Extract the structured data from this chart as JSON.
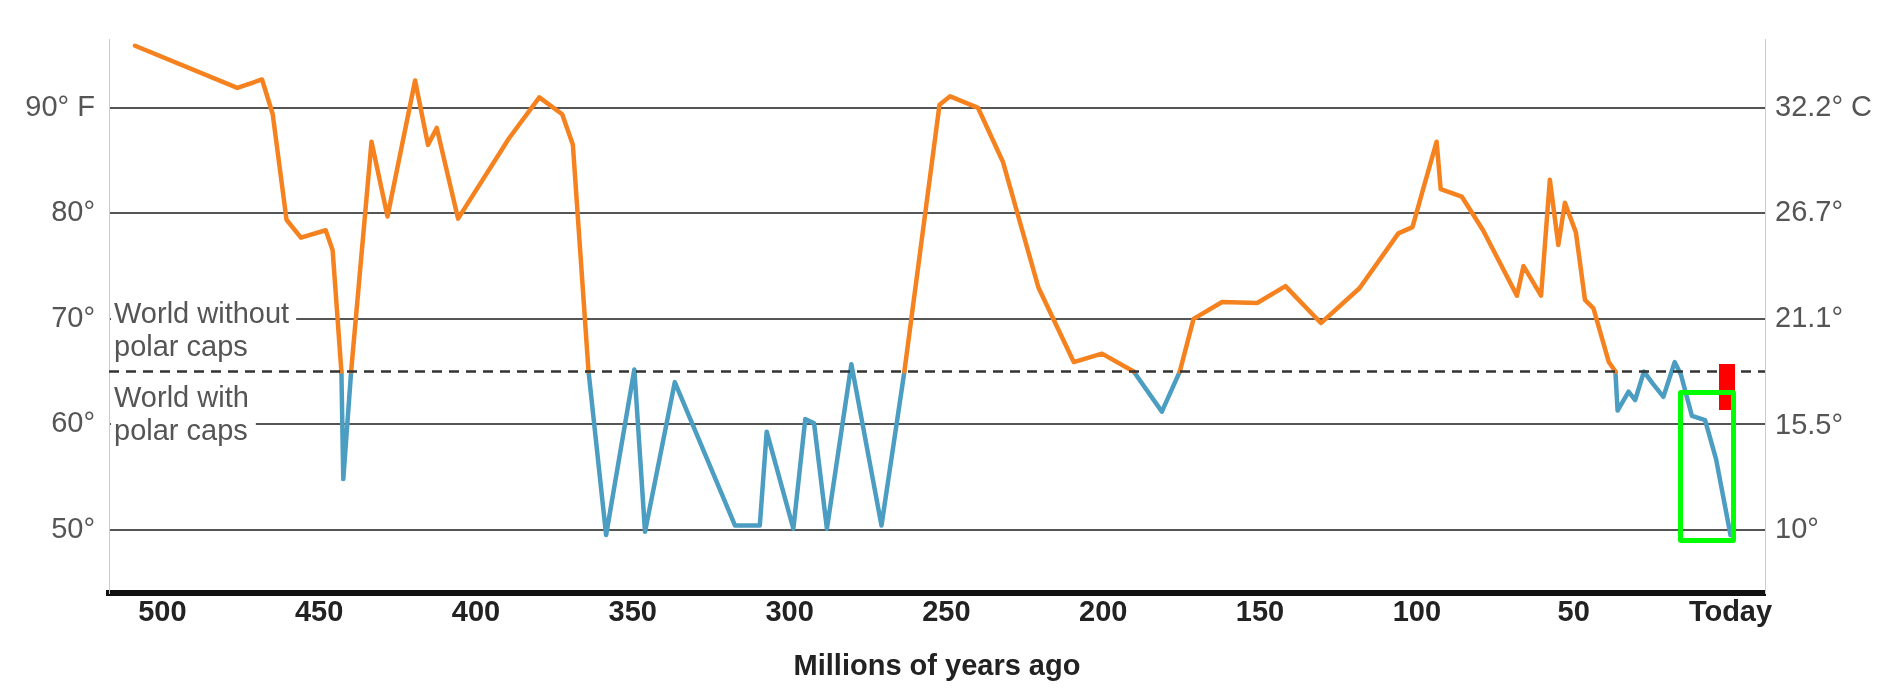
{
  "chart_data": {
    "type": "line",
    "xlabel": "Millions of years ago",
    "xlim": [
      517,
      -11
    ],
    "xticks": [
      500,
      450,
      400,
      350,
      300,
      250,
      200,
      150,
      100,
      50,
      {
        "value": 0,
        "label": "Today"
      }
    ],
    "ylim": [
      44,
      96.5
    ],
    "yticks": [
      {
        "value": 90,
        "label": "90° F"
      },
      {
        "value": 80,
        "label": "80°"
      },
      {
        "value": 70,
        "label": "70°"
      },
      {
        "value": 60,
        "label": "60°"
      },
      {
        "value": 50,
        "label": "50°"
      }
    ],
    "y2lim": [
      6.7,
      35.8
    ],
    "y2ticks": [
      {
        "value": 32.2,
        "label": "32.2° C"
      },
      {
        "value": 26.7,
        "label": "26.7°"
      },
      {
        "value": 21.1,
        "label": "21.1°"
      },
      {
        "value": 15.5,
        "label": "15.5°"
      },
      {
        "value": 10,
        "label": "10°"
      }
    ],
    "grid": "y",
    "legend": false,
    "line_style": "solid",
    "marker": "none",
    "ref_lines": [
      {
        "axis": "y",
        "value": 65,
        "label": null,
        "color": "#333333",
        "line_style": "dashed"
      }
    ],
    "annotations": [
      "World without polar caps",
      "World with polar caps"
    ],
    "series": [
      {
        "color": "#f5821f",
        "x": [
          508.7,
          476.1,
          468.2,
          464.8,
          460.4,
          455.8,
          447.9,
          445.7,
          442.9,
          441,
          439.8,
          433.3,
          428.2,
          419.4,
          415.3,
          412.5,
          405.7,
          389.5,
          379.8,
          372.5,
          369.1,
          364.1,
          300,
          263.4,
          252.2,
          248.8,
          239.9,
          232,
          220.7,
          209.4,
          200.4,
          190.3,
          180,
          175.6,
          171.2,
          162.1,
          150.9,
          141.9,
          130.6,
          118.3,
          105.9,
          101.4,
          98,
          93.7,
          92.4,
          85.7,
          78.9,
          68.1,
          66,
          60.4,
          57.6,
          54.9,
          52.8,
          49.3,
          46.4,
          43.7,
          38.8,
          36.7
        ],
        "values": [
          95.9,
          91.9,
          92.7,
          89.4,
          79.4,
          77.7,
          78.4,
          76.5,
          65,
          null,
          65,
          86.8,
          79.7,
          92.6,
          86.5,
          88.1,
          79.5,
          87.1,
          91,
          89.4,
          86.5,
          65,
          null,
          65,
          90.3,
          91.1,
          90,
          84.9,
          73,
          65.9,
          66.7,
          65,
          null,
          65,
          70,
          71.6,
          71.5,
          73.1,
          69.6,
          72.9,
          78.1,
          78.7,
          82.3,
          86.8,
          82.3,
          81.6,
          78.4,
          72.2,
          75,
          72.2,
          83.2,
          77,
          81,
          78.2,
          71.8,
          71,
          65.9,
          65
        ]
      },
      {
        "color": "#4b9dc2",
        "x": [
          442.9,
          442.3,
          439.8,
          400,
          364.1,
          358.5,
          349.5,
          346.1,
          336.6,
          317.4,
          309.5,
          307.3,
          298.8,
          295,
          292.2,
          288.1,
          280.3,
          270.7,
          263.4,
          220,
          190.3,
          181.3,
          175.6,
          100,
          36.7,
          36,
          32.5,
          30.4,
          27.6,
          24.9,
          21.4,
          17.8,
          15.8,
          12.3,
          8.1,
          4.6,
          0
        ],
        "values": [
          65,
          54.8,
          65,
          null,
          65,
          49.5,
          65.2,
          49.8,
          64,
          50.4,
          50.4,
          59.3,
          50.1,
          60.5,
          60.1,
          50.1,
          65.7,
          50.4,
          65,
          null,
          65,
          61.2,
          65,
          null,
          65,
          61.3,
          63.1,
          62.3,
          65,
          63.9,
          62.6,
          65.9,
          64.7,
          60.8,
          60.4,
          56.7,
          49.5
        ]
      }
    ]
  }
}
